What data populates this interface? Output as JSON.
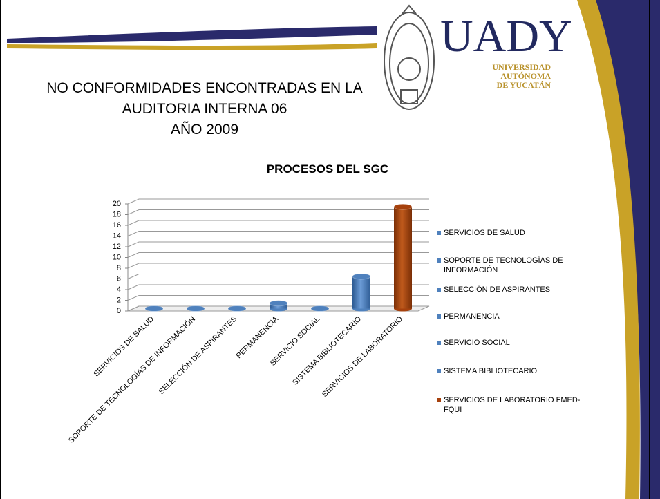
{
  "header": {
    "title_lines": [
      "NO CONFORMIDADES ENCONTRADAS EN LA",
      "AUDITORIA INTERNA 06",
      "AÑO 2009"
    ]
  },
  "logo": {
    "acronym": "UADY",
    "lines": [
      "UNIVERSIDAD",
      "AUTÓNOMA",
      "DE YUCATÁN"
    ]
  },
  "chart_data": {
    "type": "bar",
    "title": "PROCESOS DEL SGC",
    "categories": [
      "SERVICIOS DE SALUD",
      "SOPORTE DE TECNOLOGÍAS DE INFORMACIÓN",
      "SELECCIÓN DE ASPIRANTES",
      "PERMANENCIA",
      "SERVICIO SOCIAL",
      "SISTEMA BIBLIOTECARIO",
      "SERVICIOS DE LABORATORIO"
    ],
    "values": [
      0,
      0,
      0,
      1,
      0,
      6,
      19
    ],
    "colors": [
      "#4f81bd",
      "#4f81bd",
      "#4f81bd",
      "#4f81bd",
      "#4f81bd",
      "#4f81bd",
      "#a6410d"
    ],
    "legend_labels": [
      "SERVICIOS DE SALUD",
      "SOPORTE DE TECNOLOGÍAS DE INFORMACIÓN",
      "SELECCIÓN DE ASPIRANTES",
      "PERMANENCIA",
      "SERVICIO SOCIAL",
      "SISTEMA BIBLIOTECARIO",
      "SERVICIOS DE LABORATORIO FMED-FQUI"
    ],
    "ylim": [
      0,
      20
    ],
    "yticks": [
      0,
      2,
      4,
      6,
      8,
      10,
      12,
      14,
      16,
      18,
      20
    ],
    "grid": true
  }
}
